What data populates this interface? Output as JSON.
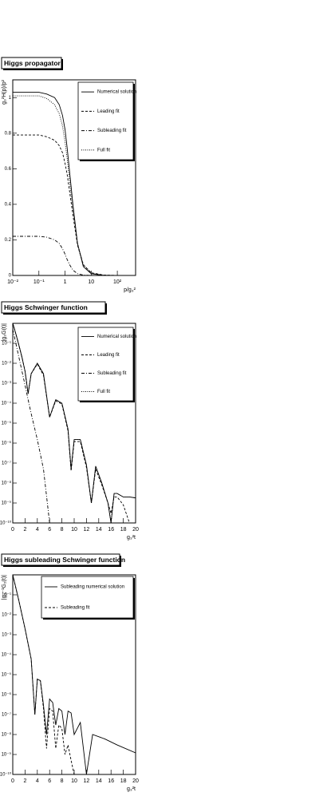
{
  "chart_data": [
    {
      "type": "line",
      "title": "Higgs propagator",
      "xlabel": "p/g₃²",
      "ylabel": "g₃²H(p)/p²",
      "xlog": true,
      "xlim": [
        0.01,
        500
      ],
      "ylim": [
        0,
        1.1
      ],
      "xticks": [
        {
          "value": 0.01,
          "label": "10⁻²"
        },
        {
          "value": 0.1,
          "label": "10⁻¹"
        },
        1,
        10,
        {
          "value": 100,
          "label": "10²"
        }
      ],
      "yticks": [
        0,
        0.2,
        0.4,
        0.6,
        0.8,
        1
      ],
      "x": [
        0.01,
        0.03,
        0.1,
        0.2,
        0.4,
        0.6,
        0.8,
        1,
        1.2,
        1.5,
        2,
        3,
        5,
        10,
        30,
        100,
        500
      ],
      "series": [
        {
          "name": "Numerical solution",
          "color": "#000000",
          "dash": "solid",
          "values": [
            1.03,
            1.03,
            1.03,
            1.02,
            1.0,
            0.96,
            0.9,
            0.82,
            0.72,
            0.58,
            0.4,
            0.18,
            0.05,
            0.01,
            0,
            0,
            0
          ]
        },
        {
          "name": "Leading fit",
          "color": "#000000",
          "dash": "dashed",
          "values": [
            0.79,
            0.79,
            0.79,
            0.78,
            0.76,
            0.73,
            0.69,
            0.63,
            0.57,
            0.47,
            0.34,
            0.17,
            0.06,
            0.015,
            0.002,
            0,
            0
          ]
        },
        {
          "name": "Subleading fit",
          "color": "#000000",
          "dash": "dashdot",
          "values": [
            0.22,
            0.22,
            0.22,
            0.215,
            0.2,
            0.18,
            0.15,
            0.12,
            0.09,
            0.06,
            0.03,
            0.01,
            0.002,
            0,
            0,
            0,
            0
          ]
        },
        {
          "name": "Full fit",
          "color": "#000000",
          "dash": "dotted",
          "values": [
            1.01,
            1.01,
            1.01,
            0.995,
            0.96,
            0.91,
            0.84,
            0.75,
            0.66,
            0.53,
            0.37,
            0.18,
            0.062,
            0.015,
            0.002,
            0,
            0
          ]
        }
      ]
    },
    {
      "type": "line",
      "title": "Higgs Schwinger function",
      "xlabel": "g₃²t",
      "ylabel": "|g₃G(t)|",
      "ylog": true,
      "xlim": [
        0,
        20
      ],
      "ylim": [
        1e-10,
        1
      ],
      "xticks": [
        0,
        2,
        4,
        6,
        8,
        10,
        12,
        14,
        16,
        18,
        20
      ],
      "yticks": [
        {
          "value": 1e-10,
          "label": "10⁻¹⁰"
        },
        {
          "value": 1e-09,
          "label": "10⁻⁹"
        },
        {
          "value": 1e-08,
          "label": "10⁻⁸"
        },
        {
          "value": 1e-07,
          "label": "10⁻⁷"
        },
        {
          "value": 1e-06,
          "label": "10⁻⁶"
        },
        {
          "value": 1e-05,
          "label": "10⁻⁵"
        },
        {
          "value": 0.0001,
          "label": "10⁻⁴"
        },
        {
          "value": 0.001,
          "label": "10⁻³"
        },
        {
          "value": 0.01,
          "label": "10⁻²"
        },
        {
          "value": 0.1,
          "label": "10⁻¹"
        }
      ],
      "x": [
        0,
        0.5,
        1,
        1.5,
        2,
        2.5,
        3,
        4,
        5,
        6,
        7,
        8,
        9,
        9.5,
        10,
        11,
        12,
        12.8,
        13.5,
        14.5,
        15.5,
        16,
        16.5,
        17,
        18,
        19,
        20
      ],
      "series": [
        {
          "name": "Numerical solution",
          "color": "#000000",
          "dash": "solid",
          "values": [
            1,
            0.3,
            0.08,
            0.02,
            0.004,
            0.0003,
            0.003,
            0.01,
            0.003,
            2e-05,
            0.00015,
            0.0001,
            5e-06,
            5e-08,
            1.5e-06,
            1.5e-06,
            8e-08,
            1e-09,
            7e-08,
            1e-08,
            1e-09,
            1e-10,
            3e-09,
            3e-09,
            2e-09,
            2e-09,
            1.8e-09
          ]
        },
        {
          "name": "Leading fit",
          "color": "#000000",
          "dash": "dashed",
          "values": [
            1,
            0.3,
            0.08,
            0.02,
            0.004,
            0.0003,
            0.003,
            0.009,
            0.0025,
            2e-05,
            0.00013,
            9e-05,
            4e-06,
            4e-08,
            1.2e-06,
            1.2e-06,
            6e-08,
            1e-09,
            5e-08,
            8e-09,
            1e-09,
            3e-10,
            2e-09,
            2e-09,
            8e-10,
            1e-10,
            1e-10
          ]
        },
        {
          "name": "Subleading fit",
          "color": "#000000",
          "dash": "dashdot",
          "values": [
            0.5,
            0.1,
            0.02,
            0.004,
            0.0008,
            0.00015,
            3e-05,
            1.5e-06,
            5e-08,
            1e-10,
            null,
            null,
            null,
            null,
            null,
            null,
            null,
            null,
            null,
            null,
            null,
            null,
            null,
            null,
            null,
            null,
            null
          ]
        },
        {
          "name": "Full fit",
          "color": "#000000",
          "dash": "dotted",
          "values": [
            1,
            0.3,
            0.08,
            0.02,
            0.004,
            0.0003,
            0.003,
            0.01,
            0.003,
            2e-05,
            0.00015,
            0.0001,
            5e-06,
            5e-08,
            1.5e-06,
            1.5e-06,
            8e-08,
            1e-09,
            7e-08,
            1e-08,
            1e-09,
            1e-10,
            3e-09,
            3e-09,
            2e-09,
            2e-09,
            1.8e-09
          ]
        }
      ]
    },
    {
      "type": "line",
      "title": "Higgs subleading Schwinger function",
      "xlabel": "g₃²t",
      "ylabel": "|g₃⁻¹G₂(t)|",
      "ylog": true,
      "xlim": [
        0,
        20
      ],
      "ylim": [
        1e-10,
        1
      ],
      "xticks": [
        0,
        2,
        4,
        6,
        8,
        10,
        12,
        14,
        16,
        18,
        20
      ],
      "yticks": [
        {
          "value": 1e-10,
          "label": "10⁻¹⁰"
        },
        {
          "value": 1e-09,
          "label": "10⁻⁹"
        },
        {
          "value": 1e-08,
          "label": "10⁻⁸"
        },
        {
          "value": 1e-07,
          "label": "10⁻⁷"
        },
        {
          "value": 1e-06,
          "label": "10⁻⁶"
        },
        {
          "value": 1e-05,
          "label": "10⁻⁵"
        },
        {
          "value": 0.0001,
          "label": "10⁻⁴"
        },
        {
          "value": 0.001,
          "label": "10⁻³"
        },
        {
          "value": 0.01,
          "label": "10⁻²"
        },
        {
          "value": 0.1,
          "label": "10⁻¹"
        }
      ],
      "x": [
        0,
        1,
        2,
        3,
        3.6,
        4,
        4.5,
        5,
        5.5,
        6,
        6.5,
        7,
        7.5,
        8,
        8.5,
        9,
        9.5,
        10,
        11,
        12,
        13,
        15,
        17,
        20
      ],
      "series": [
        {
          "name": "Subleading numerical solution",
          "color": "#000000",
          "dash": "solid",
          "values": [
            1,
            0.05,
            0.002,
            6e-05,
            1e-07,
            6e-06,
            5e-06,
            3e-07,
            1e-08,
            6e-07,
            4e-07,
            3e-08,
            2e-07,
            1.5e-07,
            1e-08,
            1.5e-07,
            1.2e-07,
            1e-08,
            4e-08,
            1e-10,
            1e-08,
            6e-09,
            3e-09,
            1.2e-09
          ]
        },
        {
          "name": "Subleading fit",
          "color": "#000000",
          "dash": "dashed",
          "values": [
            1,
            0.05,
            0.002,
            6e-05,
            1e-07,
            6e-06,
            5e-06,
            2e-07,
            2e-09,
            2e-07,
            1.5e-07,
            2e-09,
            3e-08,
            2e-08,
            1e-09,
            3e-09,
            5e-10,
            1e-10,
            null,
            null,
            null,
            null,
            null,
            null
          ]
        }
      ]
    }
  ]
}
